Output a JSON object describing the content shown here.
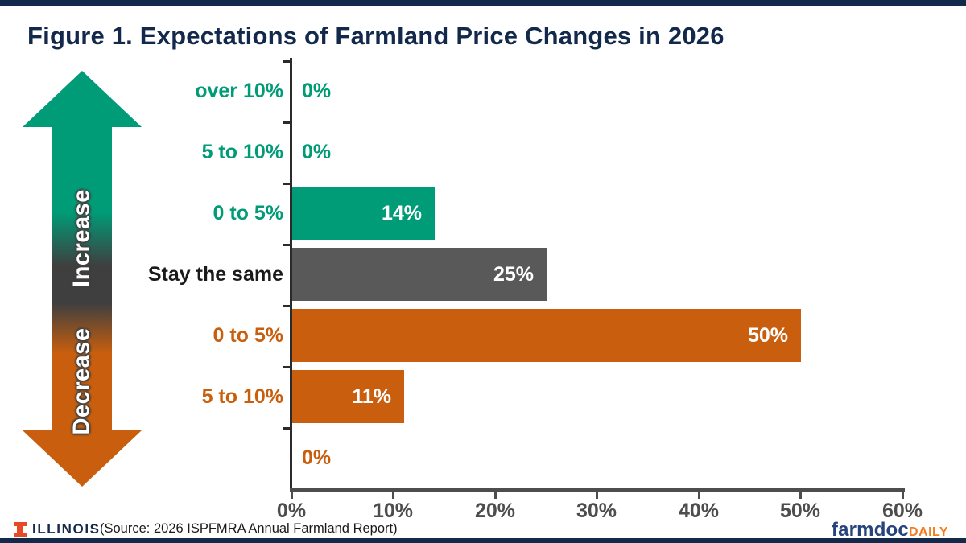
{
  "page": {
    "title": "Figure 1. Expectations of Farmland Price Changes in 2026"
  },
  "arrow": {
    "increase_label": "Increase",
    "decrease_label": "Decrease"
  },
  "chart_data": {
    "type": "bar",
    "orientation": "horizontal",
    "title": "Figure 1. Expectations of Farmland Price Changes in 2026",
    "categories": [
      "over 10%",
      "5 to 10%",
      "0 to 5%",
      "Stay the same",
      "0 to 5%",
      "5 to 10%",
      ""
    ],
    "values": [
      0,
      0,
      14,
      25,
      50,
      11,
      0
    ],
    "value_labels": [
      "0%",
      "0%",
      "14%",
      "25%",
      "50%",
      "11%",
      "0%"
    ],
    "groups": [
      "increase",
      "increase",
      "increase",
      "same",
      "decrease",
      "decrease",
      "decrease"
    ],
    "x_ticks": [
      "0%",
      "10%",
      "20%",
      "30%",
      "40%",
      "50%",
      "60%"
    ],
    "xlim": [
      0,
      60
    ],
    "xlabel": "",
    "ylabel": "",
    "grid": false,
    "legend": false
  },
  "colors": {
    "increase": "#009B77",
    "same": "#595959",
    "same_label": "#1a1a1a",
    "decrease": "#C95F0E",
    "navy": "#13294B",
    "axis_text": "#4D4D4D",
    "illinois_orange": "#E84A27",
    "farmdoc_navy": "#26437C",
    "farmdoc_orange": "#F47B20"
  },
  "footer": {
    "illinois_label": "ILLINOIS",
    "source": "(Source: 2026 ISPFMRA Annual Farmland Report)",
    "farmdoc": "farmdoc",
    "daily": "DAILY"
  }
}
